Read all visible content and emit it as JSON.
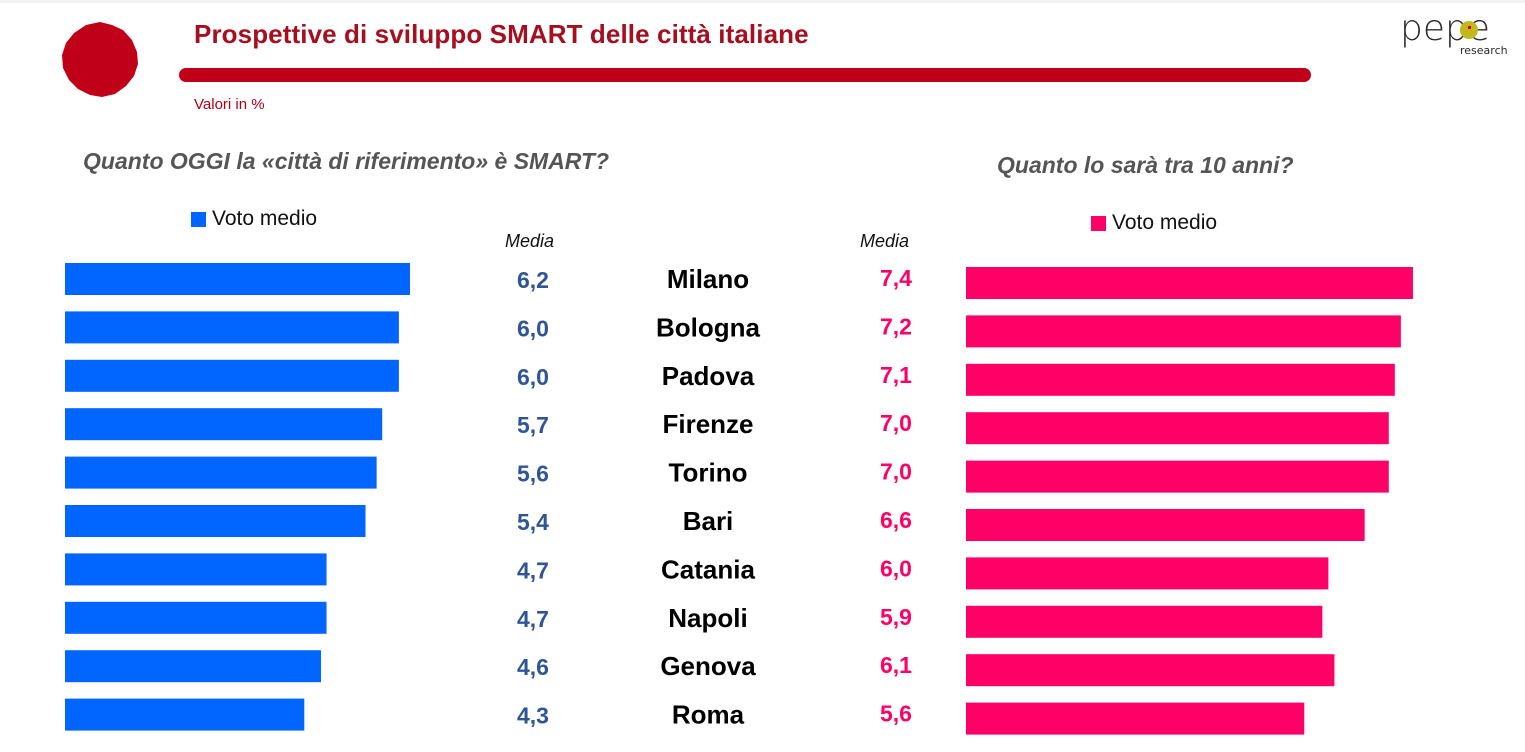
{
  "header": {
    "title": "Prospettive di sviluppo SMART delle città italiane",
    "subtitle": "Valori in %",
    "logo_text": "pepe",
    "logo_subtext": "research",
    "accent_color": "#c00018"
  },
  "left_panel": {
    "question": "Quanto OGGI la «città di riferimento» è SMART?",
    "legend_label": "Voto medio",
    "column_label": "Media",
    "color": "#0066ff",
    "value_color": "#2f5597"
  },
  "right_panel": {
    "question": "Quanto lo sarà tra 10 anni?",
    "legend_label": "Voto medio",
    "column_label": "Media",
    "color": "#ff0066",
    "value_color": "#ff0066"
  },
  "chart_data": {
    "type": "bar",
    "orientation": "horizontal",
    "title": "Prospettive di sviluppo SMART delle città italiane",
    "subtitle": "Valori in %",
    "categories": [
      "Milano",
      "Bologna",
      "Padova",
      "Firenze",
      "Torino",
      "Bari",
      "Catania",
      "Napoli",
      "Genova",
      "Roma"
    ],
    "series": [
      {
        "name": "Voto medio",
        "panel": "Quanto OGGI la «città di riferimento» è SMART?",
        "values": [
          6.2,
          6.0,
          6.0,
          5.7,
          5.6,
          5.4,
          4.7,
          4.7,
          4.6,
          4.3
        ],
        "labels": [
          "6,2",
          "6,0",
          "6,0",
          "5,7",
          "5,6",
          "5,4",
          "4,7",
          "4,7",
          "4,6",
          "4,3"
        ],
        "color": "#0066ff"
      },
      {
        "name": "Voto medio",
        "panel": "Quanto lo sarà tra 10 anni?",
        "values": [
          7.4,
          7.2,
          7.1,
          7.0,
          7.0,
          6.6,
          6.0,
          5.9,
          6.1,
          5.6
        ],
        "labels": [
          "7,4",
          "7,2",
          "7,1",
          "7,0",
          "7,0",
          "6,6",
          "6,0",
          "5,9",
          "6,1",
          "5,6"
        ],
        "color": "#ff0066"
      }
    ],
    "xlabel": "",
    "ylabel": "",
    "grid": false,
    "legend": "top"
  }
}
